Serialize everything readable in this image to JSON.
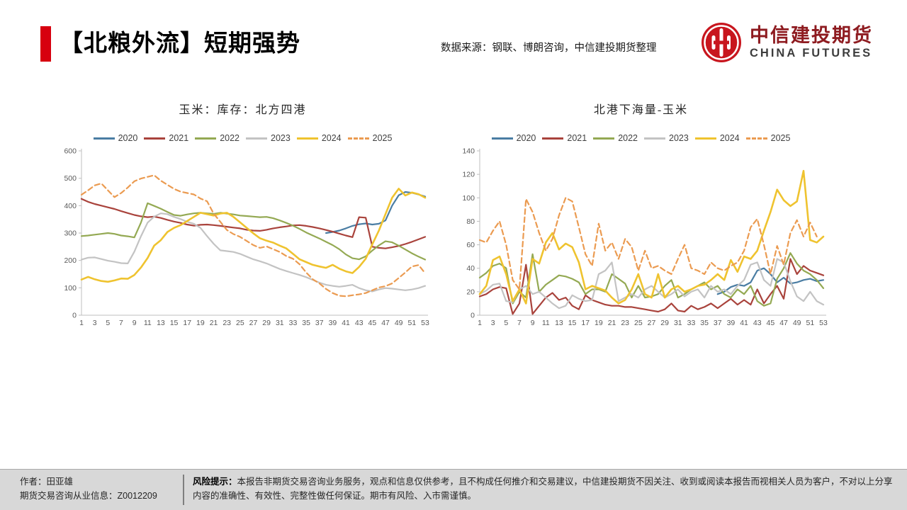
{
  "header": {
    "title": "【北粮外流】短期强势",
    "source_note": "数据来源：钢联、博朗咨询，中信建投期货整理",
    "logo": {
      "cn": "中信建投期货",
      "en": "CHINA FUTURES",
      "brand_color": "#c8161e",
      "emblem": "china-futures-round-emblem"
    }
  },
  "chart_data": [
    {
      "type": "line",
      "title": "玉米：库存：北方四港",
      "grid": false,
      "legend_position": "top",
      "x_range": [
        1,
        53
      ],
      "x_ticks": [
        1,
        3,
        5,
        7,
        9,
        11,
        13,
        15,
        17,
        19,
        21,
        23,
        25,
        27,
        29,
        31,
        33,
        35,
        37,
        39,
        41,
        43,
        45,
        47,
        49,
        51,
        53
      ],
      "ylim": [
        0,
        600
      ],
      "ytick_step": 100,
      "series": [
        {
          "name": "2020",
          "color": "#4a7da3",
          "dashed": false,
          "values": [
            null,
            null,
            null,
            null,
            null,
            null,
            null,
            null,
            null,
            null,
            null,
            null,
            null,
            null,
            null,
            null,
            null,
            null,
            null,
            null,
            null,
            null,
            null,
            null,
            null,
            null,
            null,
            null,
            null,
            null,
            null,
            null,
            null,
            null,
            null,
            null,
            null,
            300,
            304,
            309,
            317,
            326,
            332,
            335,
            331,
            334,
            346,
            400,
            438,
            450,
            447,
            441,
            433
          ]
        },
        {
          "name": "2021",
          "color": "#a9433c",
          "dashed": false,
          "values": [
            425,
            414,
            406,
            400,
            394,
            388,
            380,
            373,
            366,
            361,
            358,
            360,
            355,
            348,
            342,
            337,
            331,
            327,
            330,
            331,
            329,
            326,
            323,
            320,
            317,
            312,
            309,
            308,
            312,
            317,
            321,
            324,
            328,
            329,
            326,
            322,
            317,
            311,
            305,
            298,
            291,
            285,
            358,
            356,
            250,
            246,
            244,
            248,
            253,
            260,
            268,
            277,
            286
          ]
        },
        {
          "name": "2022",
          "color": "#94a953",
          "dashed": false,
          "values": [
            289,
            291,
            294,
            297,
            300,
            297,
            291,
            288,
            284,
            338,
            409,
            399,
            389,
            377,
            366,
            363,
            368,
            372,
            374,
            372,
            370,
            374,
            371,
            368,
            364,
            362,
            360,
            358,
            359,
            354,
            346,
            337,
            327,
            315,
            302,
            291,
            280,
            268,
            256,
            241,
            222,
            208,
            204,
            215,
            236,
            255,
            270,
            266,
            254,
            240,
            226,
            214,
            203
          ]
        },
        {
          "name": "2023",
          "color": "#c3c3c3",
          "dashed": false,
          "values": [
            203,
            210,
            211,
            205,
            199,
            195,
            190,
            189,
            232,
            288,
            338,
            360,
            372,
            369,
            359,
            351,
            341,
            334,
            319,
            289,
            261,
            237,
            234,
            231,
            224,
            214,
            204,
            197,
            189,
            179,
            169,
            161,
            154,
            147,
            139,
            129,
            119,
            111,
            107,
            104,
            107,
            111,
            99,
            91,
            87,
            94,
            99,
            97,
            94,
            91,
            94,
            99,
            107
          ]
        },
        {
          "name": "2024",
          "color": "#efc32f",
          "dashed": false,
          "values": [
            130,
            140,
            131,
            125,
            122,
            127,
            134,
            133,
            147,
            174,
            209,
            254,
            274,
            304,
            319,
            329,
            344,
            359,
            374,
            369,
            364,
            371,
            374,
            359,
            339,
            319,
            299,
            281,
            272,
            265,
            254,
            244,
            224,
            204,
            194,
            184,
            178,
            173,
            184,
            170,
            160,
            154,
            176,
            206,
            259,
            309,
            369,
            429,
            462,
            437,
            448,
            442,
            429
          ]
        },
        {
          "name": "2025",
          "color": "#eb9b51",
          "dashed": true,
          "values": [
            440,
            456,
            474,
            481,
            456,
            431,
            446,
            466,
            489,
            499,
            505,
            511,
            491,
            476,
            461,
            451,
            446,
            441,
            426,
            416,
            371,
            341,
            311,
            296,
            286,
            271,
            256,
            246,
            251,
            241,
            231,
            216,
            206,
            186,
            156,
            131,
            116,
            96,
            81,
            71,
            69,
            73,
            76,
            81,
            91,
            101,
            106,
            116,
            136,
            156,
            178,
            183,
            153
          ]
        }
      ]
    },
    {
      "type": "line",
      "title": "北港下海量-玉米",
      "grid": false,
      "legend_position": "top",
      "x_range": [
        1,
        53
      ],
      "x_ticks": [
        1,
        3,
        5,
        7,
        9,
        11,
        13,
        15,
        17,
        19,
        21,
        23,
        25,
        27,
        29,
        31,
        33,
        35,
        37,
        39,
        41,
        43,
        45,
        47,
        49,
        51,
        53
      ],
      "ylim": [
        0,
        140
      ],
      "ytick_step": 20,
      "series": [
        {
          "name": "2020",
          "color": "#4a7da3",
          "dashed": false,
          "values": [
            null,
            null,
            null,
            null,
            null,
            null,
            null,
            null,
            null,
            null,
            null,
            null,
            null,
            null,
            null,
            null,
            null,
            null,
            null,
            null,
            null,
            null,
            null,
            null,
            null,
            null,
            null,
            null,
            null,
            null,
            null,
            null,
            null,
            null,
            null,
            null,
            18,
            20,
            24,
            26,
            25,
            28,
            38,
            40,
            35,
            28,
            32,
            27,
            28,
            30,
            31,
            29,
            30
          ]
        },
        {
          "name": "2021",
          "color": "#a9433c",
          "dashed": false,
          "values": [
            16,
            18,
            22,
            24,
            23,
            1,
            10,
            43,
            1,
            8,
            15,
            19,
            13,
            15,
            8,
            5,
            17,
            13,
            11,
            9,
            8,
            8,
            7,
            7,
            6,
            5,
            4,
            3,
            5,
            10,
            4,
            3,
            8,
            5,
            7,
            10,
            6,
            10,
            14,
            9,
            13,
            9,
            22,
            10,
            18,
            25,
            14,
            48,
            35,
            42,
            38,
            36,
            34
          ]
        },
        {
          "name": "2022",
          "color": "#94a953",
          "dashed": false,
          "values": [
            32,
            36,
            42,
            44,
            40,
            10,
            20,
            15,
            52,
            20,
            26,
            30,
            34,
            33,
            31,
            28,
            18,
            22,
            22,
            20,
            35,
            31,
            27,
            15,
            25,
            15,
            16,
            18,
            25,
            30,
            15,
            18,
            22,
            25,
            28,
            22,
            25,
            18,
            15,
            22,
            18,
            25,
            12,
            8,
            10,
            31,
            40,
            53,
            44,
            38,
            35,
            30,
            23
          ]
        },
        {
          "name": "2023",
          "color": "#c3c3c3",
          "dashed": false,
          "values": [
            18,
            21,
            26,
            27,
            12,
            11,
            22,
            25,
            18,
            20,
            15,
            10,
            6,
            8,
            17,
            14,
            12,
            13,
            35,
            38,
            45,
            12,
            15,
            18,
            15,
            22,
            25,
            20,
            15,
            18,
            22,
            16,
            20,
            22,
            15,
            25,
            20,
            22,
            18,
            25,
            30,
            43,
            45,
            30,
            25,
            48,
            45,
            29,
            16,
            12,
            20,
            12,
            9
          ]
        },
        {
          "name": "2024",
          "color": "#efc32f",
          "dashed": false,
          "values": [
            18,
            25,
            47,
            50,
            35,
            12,
            22,
            10,
            48,
            44,
            62,
            70,
            56,
            61,
            58,
            45,
            22,
            25,
            23,
            21,
            15,
            10,
            13,
            22,
            35,
            18,
            15,
            35,
            15,
            22,
            25,
            20,
            22,
            25,
            26,
            30,
            35,
            30,
            47,
            37,
            50,
            48,
            55,
            72,
            88,
            107,
            98,
            93,
            97,
            123,
            64,
            62,
            67
          ]
        },
        {
          "name": "2025",
          "color": "#eb9b51",
          "dashed": true,
          "values": [
            64,
            62,
            72,
            80,
            60,
            30,
            22,
            99,
            88,
            70,
            55,
            65,
            85,
            100,
            97,
            75,
            52,
            42,
            78,
            55,
            62,
            48,
            65,
            58,
            38,
            55,
            40,
            42,
            38,
            35,
            48,
            60,
            40,
            38,
            35,
            45,
            40,
            38,
            42,
            45,
            55,
            75,
            82,
            60,
            35,
            59,
            43,
            70,
            81,
            67,
            79,
            67,
            null
          ]
        }
      ]
    }
  ],
  "footer": {
    "author_line1": "作者：田亚雄",
    "author_line2": "期货交易咨询从业信息：Z0012209",
    "risk_label": "风险提示：",
    "risk_text": "本报告非期货交易咨询业务服务，观点和信息仅供参考，且不构成任何推介和交易建议，中信建投期货不因关注、收到或阅读本报告而视相关人员为客户，不对以上分享内容的准确性、有效性、完整性做任何保证。期市有风险、入市需谨慎。"
  }
}
